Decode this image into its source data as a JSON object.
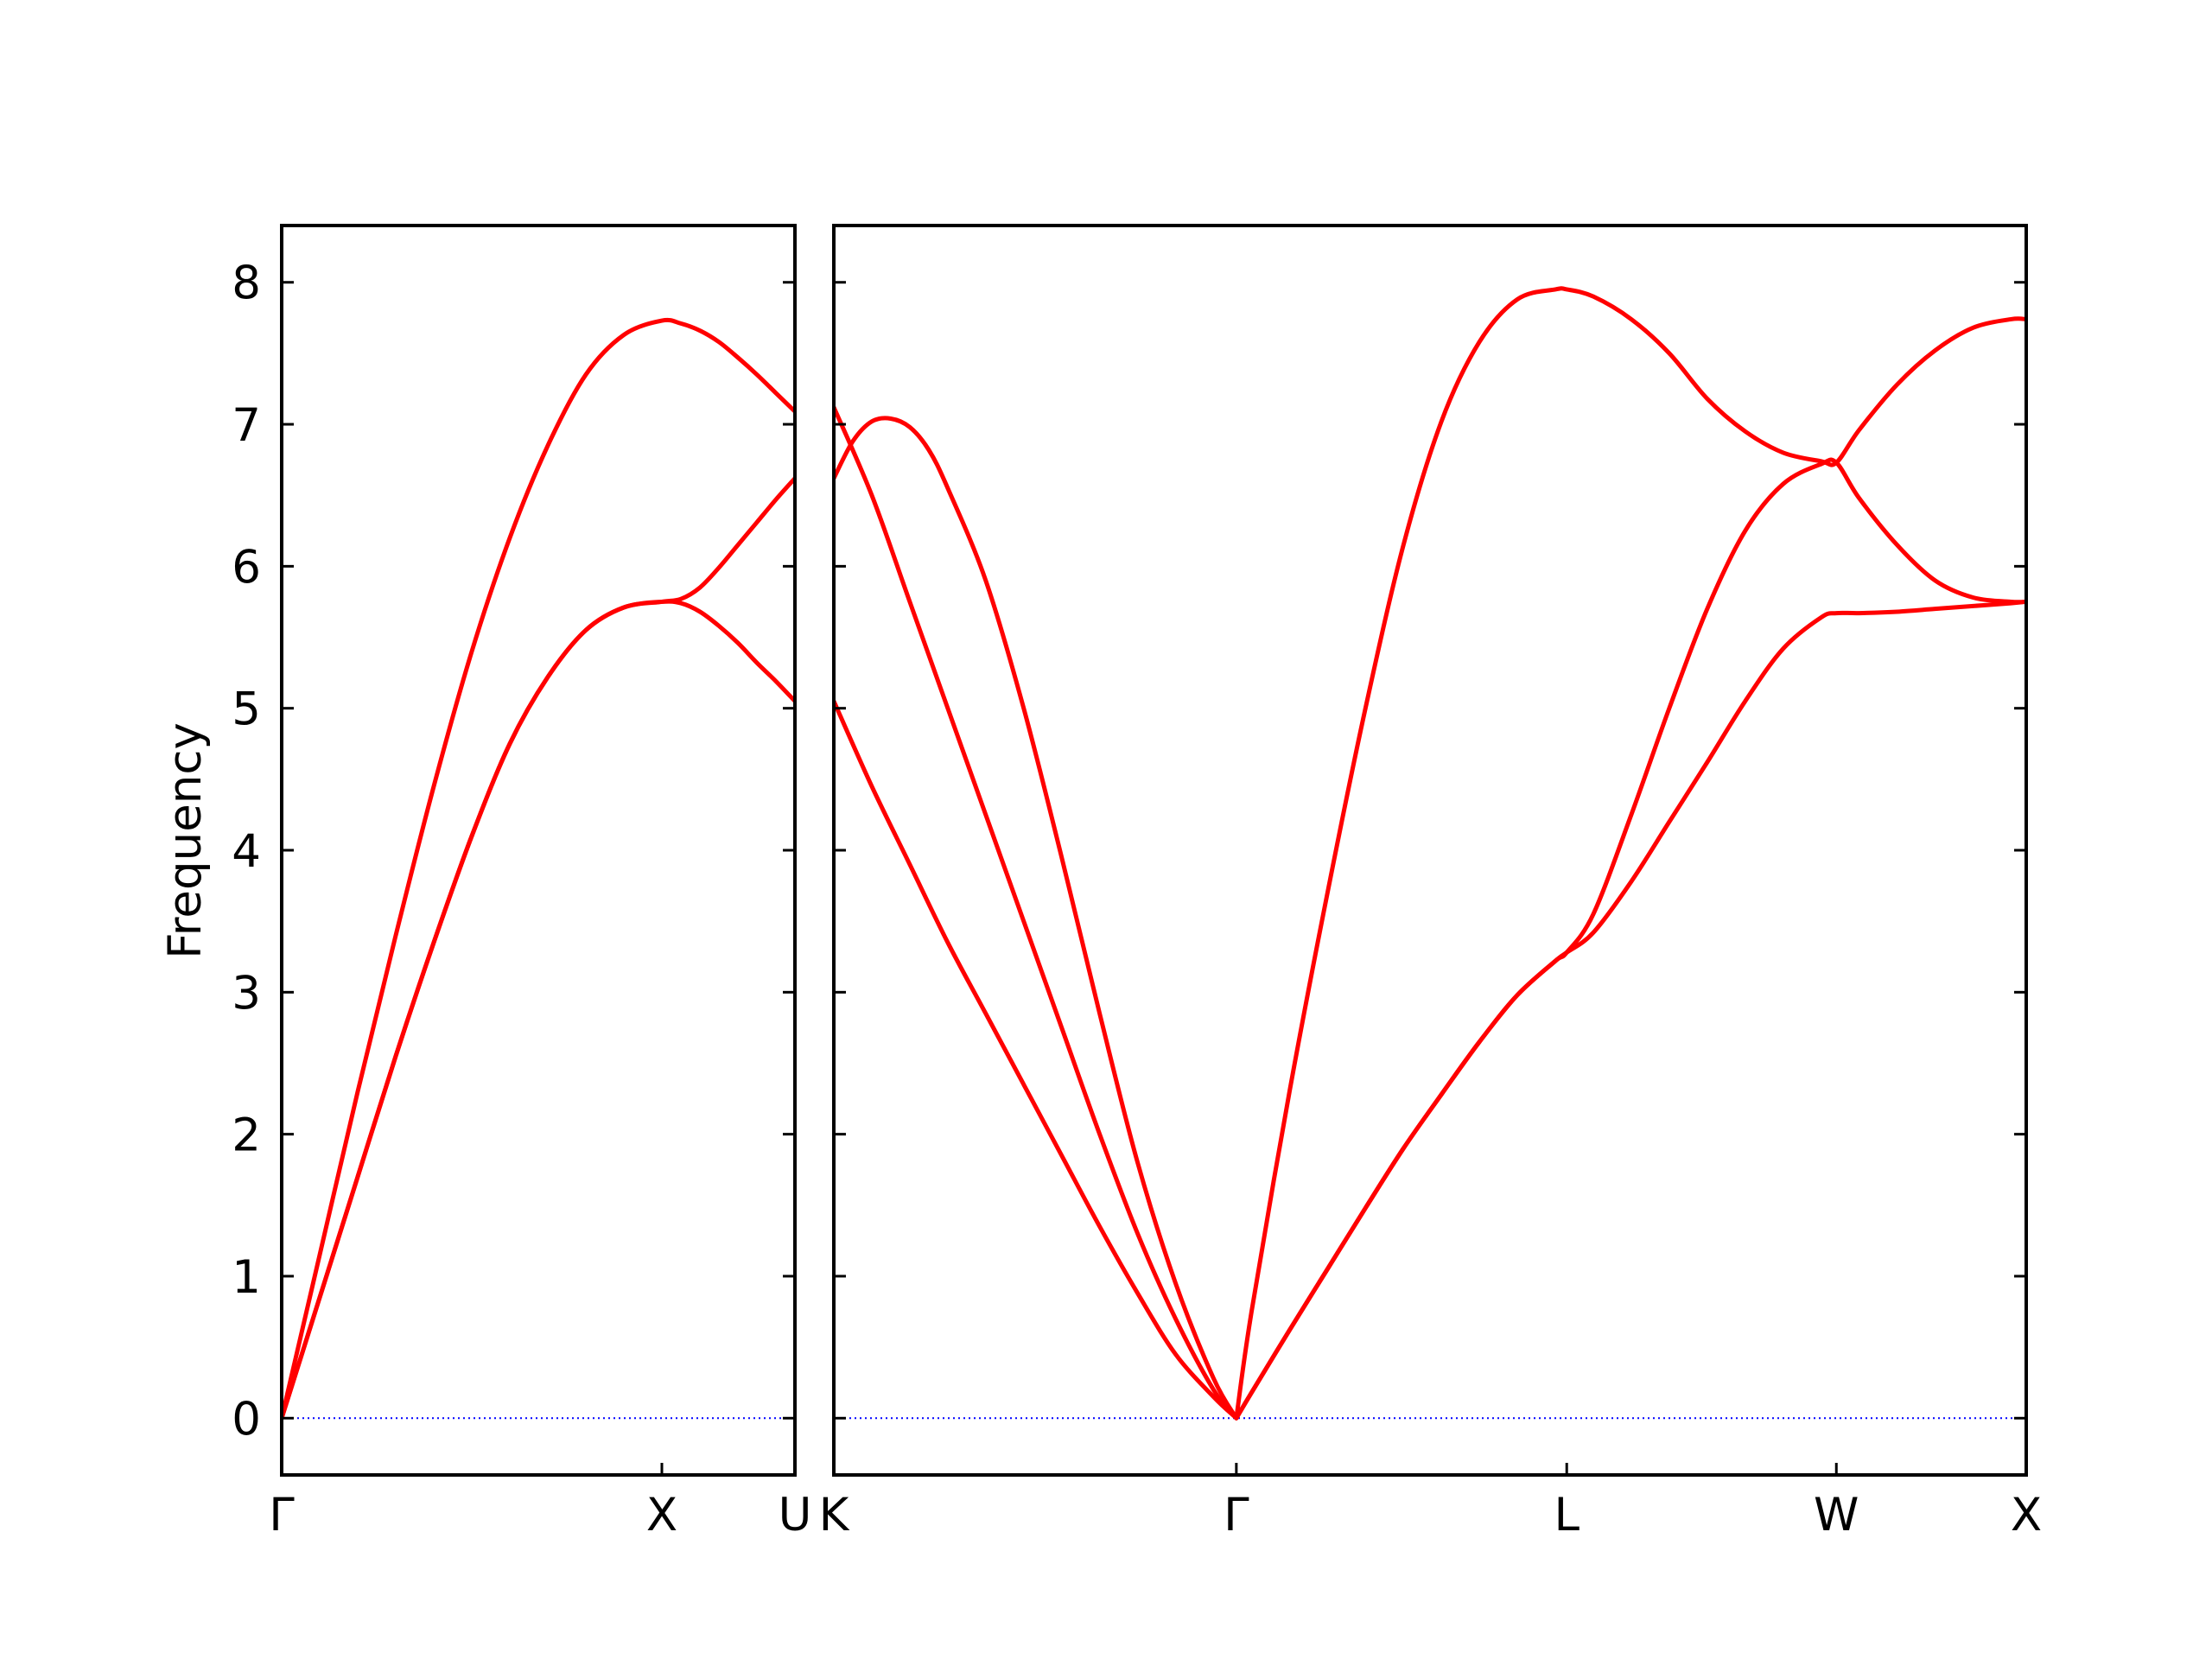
{
  "chart_data": {
    "type": "line",
    "ylabel": "Frequency",
    "ylim": [
      -0.4,
      8.4
    ],
    "yticks": [
      0,
      1,
      2,
      3,
      4,
      5,
      6,
      7,
      8
    ],
    "grid": false,
    "colors": {
      "band": "#ff0000",
      "zero_line": "#0000ff",
      "axes": "#000000"
    },
    "panels": [
      {
        "id": "left",
        "xlim": [
          0,
          1.35
        ],
        "xticks": [
          {
            "x": 0,
            "label": "Γ"
          },
          {
            "x": 1.0,
            "label": "X"
          },
          {
            "x": 1.35,
            "label": "U"
          }
        ],
        "zero_line": true,
        "series": [
          {
            "x": [
              0,
              0.1,
              0.2,
              0.3,
              0.4,
              0.5,
              0.6,
              0.7,
              0.8,
              0.9,
              1.0,
              1.05,
              1.1,
              1.15,
              1.2,
              1.25,
              1.3,
              1.35
            ],
            "y": [
              0,
              1.15,
              2.3,
              3.4,
              4.45,
              5.4,
              6.2,
              6.85,
              7.35,
              7.63,
              7.73,
              7.71,
              7.66,
              7.58,
              7.47,
              7.35,
              7.22,
              7.09
            ]
          },
          {
            "x": [
              0,
              0.1,
              0.2,
              0.3,
              0.4,
              0.5,
              0.6,
              0.7,
              0.8,
              0.9,
              1.0,
              1.05,
              1.1,
              1.15,
              1.2,
              1.25,
              1.3,
              1.35
            ],
            "y": [
              0,
              0.85,
              1.7,
              2.55,
              3.35,
              4.1,
              4.75,
              5.22,
              5.55,
              5.71,
              5.75,
              5.74,
              5.68,
              5.58,
              5.46,
              5.32,
              5.19,
              5.05
            ]
          },
          {
            "x": [
              0,
              0.1,
              0.2,
              0.3,
              0.4,
              0.5,
              0.6,
              0.7,
              0.8,
              0.9,
              1.0,
              1.05,
              1.1,
              1.15,
              1.2,
              1.25,
              1.3,
              1.35
            ],
            "y": [
              0,
              0.85,
              1.7,
              2.55,
              3.35,
              4.1,
              4.75,
              5.22,
              5.55,
              5.71,
              5.75,
              5.77,
              5.85,
              5.99,
              6.15,
              6.31,
              6.47,
              6.62
            ]
          }
        ]
      },
      {
        "id": "right",
        "xlim": [
          0,
          3.14
        ],
        "xticks": [
          {
            "x": 0,
            "label": "K"
          },
          {
            "x": 1.06,
            "label": "Γ"
          },
          {
            "x": 1.93,
            "label": "L"
          },
          {
            "x": 2.64,
            "label": "W"
          },
          {
            "x": 3.14,
            "label": "X"
          }
        ],
        "zero_line": true,
        "series": [
          {
            "x": [
              0,
              0.1,
              0.2,
              0.3,
              0.4,
              0.5,
              0.6,
              0.7,
              0.8,
              0.9,
              1.0,
              1.06
            ],
            "y": [
              5.05,
              4.45,
              3.9,
              3.35,
              2.85,
              2.35,
              1.85,
              1.35,
              0.88,
              0.45,
              0.15,
              0
            ]
          },
          {
            "x": [
              0,
              0.1,
              0.2,
              0.3,
              0.4,
              0.5,
              0.6,
              0.7,
              0.8,
              0.9,
              1.0,
              1.06
            ],
            "y": [
              7.12,
              6.5,
              5.75,
              5.0,
              4.25,
              3.5,
              2.75,
              2.0,
              1.3,
              0.7,
              0.2,
              0
            ]
          },
          {
            "x": [
              0,
              0.05,
              0.1,
              0.15,
              0.2,
              0.25,
              0.3,
              0.4,
              0.5,
              0.6,
              0.7,
              0.8,
              0.9,
              1.0,
              1.06
            ],
            "y": [
              6.62,
              6.88,
              7.02,
              7.04,
              6.98,
              6.82,
              6.55,
              5.9,
              5.0,
              3.95,
              2.85,
              1.8,
              0.95,
              0.28,
              0
            ]
          },
          {
            "x": [
              1.06,
              1.1,
              1.2,
              1.3,
              1.4,
              1.5,
              1.6,
              1.7,
              1.8,
              1.9,
              1.93,
              2.0,
              2.1,
              2.2,
              2.3,
              2.4,
              2.5,
              2.6,
              2.64,
              2.7,
              2.8,
              2.9,
              3.0,
              3.1,
              3.14
            ],
            "y": [
              0,
              0.18,
              0.62,
              1.05,
              1.48,
              1.9,
              2.28,
              2.65,
              2.98,
              3.22,
              3.28,
              3.42,
              3.78,
              4.2,
              4.62,
              5.05,
              5.42,
              5.64,
              5.67,
              5.67,
              5.68,
              5.7,
              5.72,
              5.74,
              5.75
            ]
          },
          {
            "x": [
              1.06,
              1.1,
              1.2,
              1.3,
              1.4,
              1.5,
              1.6,
              1.7,
              1.8,
              1.9,
              1.93,
              2.0,
              2.1,
              2.2,
              2.3,
              2.4,
              2.5,
              2.6,
              2.64,
              2.7,
              2.8,
              2.9,
              3.0,
              3.1,
              3.14
            ],
            "y": [
              0,
              0.18,
              0.62,
              1.05,
              1.48,
              1.9,
              2.28,
              2.65,
              2.98,
              3.22,
              3.28,
              3.55,
              4.25,
              5.0,
              5.7,
              6.25,
              6.58,
              6.72,
              6.73,
              6.48,
              6.15,
              5.9,
              5.78,
              5.75,
              5.75
            ]
          },
          {
            "x": [
              1.06,
              1.1,
              1.2,
              1.3,
              1.4,
              1.5,
              1.6,
              1.7,
              1.8,
              1.9,
              1.93,
              2.0,
              2.1,
              2.2,
              2.3,
              2.4,
              2.5,
              2.6,
              2.64,
              2.7,
              2.8,
              2.9,
              3.0,
              3.1,
              3.14
            ],
            "y": [
              0,
              0.75,
              2.3,
              3.7,
              5.0,
              6.15,
              7.02,
              7.58,
              7.88,
              7.95,
              7.95,
              7.9,
              7.74,
              7.5,
              7.18,
              6.95,
              6.8,
              6.74,
              6.73,
              6.96,
              7.28,
              7.52,
              7.68,
              7.74,
              7.74
            ]
          }
        ]
      }
    ]
  }
}
